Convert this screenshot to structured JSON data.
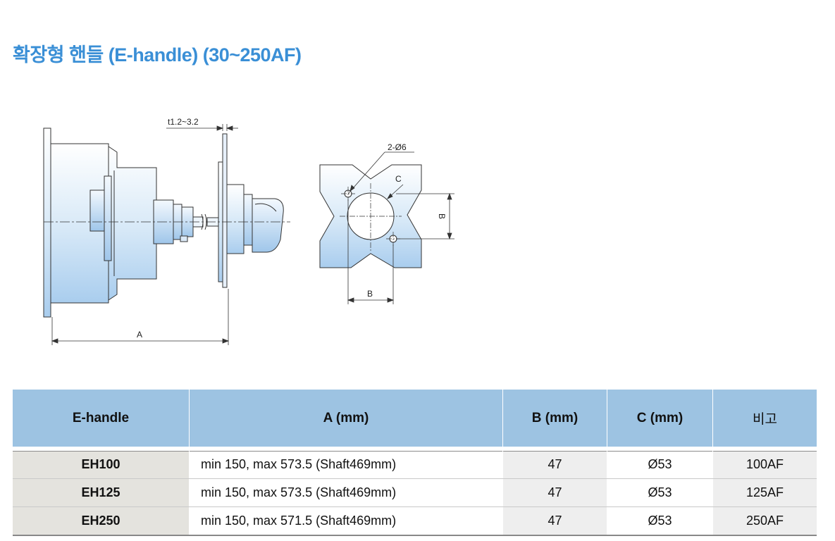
{
  "title": "확장형 핸들 (E-handle) (30~250AF)",
  "drawing": {
    "thickness_label": "t1.2~3.2",
    "dim_a_label": "A",
    "hole_label": "2-Ø6",
    "c_label": "C",
    "dim_b_vertical_label": "B",
    "dim_b_horizontal_label": "B"
  },
  "table": {
    "headers": [
      "E-handle",
      "A (mm)",
      "B (mm)",
      "C (mm)",
      "비고"
    ],
    "rows": [
      {
        "model": "EH100",
        "a": "min 150, max 573.5 (Shaft469mm)",
        "b": "47",
        "c": "Ø53",
        "note": "100AF"
      },
      {
        "model": "EH125",
        "a": "min 150, max 573.5 (Shaft469mm)",
        "b": "47",
        "c": "Ø53",
        "note": "125AF"
      },
      {
        "model": "EH250",
        "a": "min 150, max 571.5 (Shaft469mm)",
        "b": "47",
        "c": "Ø53",
        "note": "250AF"
      }
    ]
  }
}
